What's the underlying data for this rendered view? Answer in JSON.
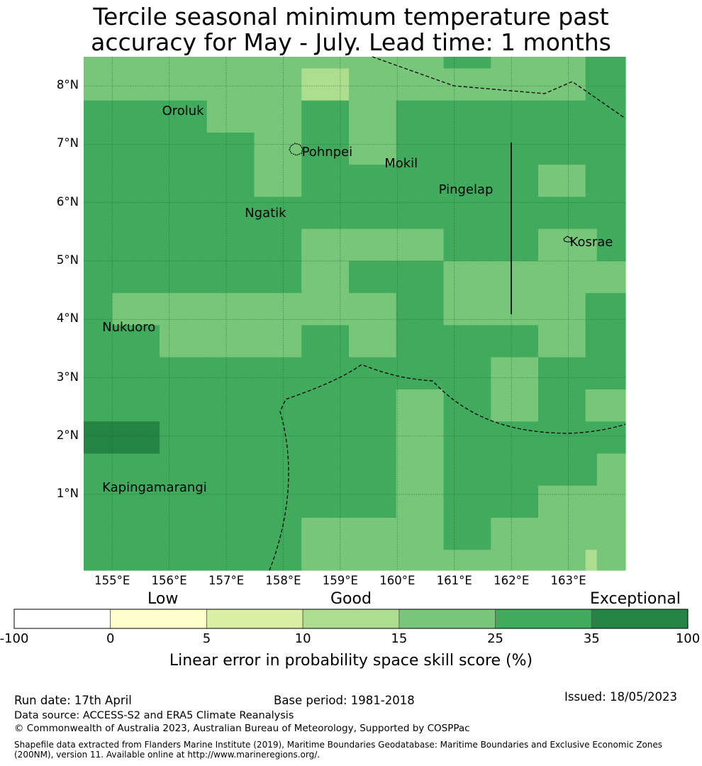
{
  "title": {
    "line1": "Tercile seasonal minimum temperature past",
    "line2": "accuracy for May - July. Lead time: 1 months"
  },
  "map": {
    "lon_range": [
      154.5,
      164.0
    ],
    "lat_range": [
      -0.3,
      8.5
    ],
    "grid": true,
    "lat_ticks": [
      {
        "value": 8,
        "label": "8°N"
      },
      {
        "value": 7,
        "label": "7°N"
      },
      {
        "value": 6,
        "label": "6°N"
      },
      {
        "value": 5,
        "label": "5°N"
      },
      {
        "value": 4,
        "label": "4°N"
      },
      {
        "value": 3,
        "label": "3°N"
      },
      {
        "value": 2,
        "label": "2°N"
      },
      {
        "value": 1,
        "label": "1°N"
      }
    ],
    "lon_ticks": [
      {
        "value": 155,
        "label": "155°E"
      },
      {
        "value": 156,
        "label": "156°E"
      },
      {
        "value": 157,
        "label": "157°E"
      },
      {
        "value": 158,
        "label": "158°E"
      },
      {
        "value": 159,
        "label": "159°E"
      },
      {
        "value": 160,
        "label": "160°E"
      },
      {
        "value": 161,
        "label": "161°E"
      },
      {
        "value": 162,
        "label": "162°E"
      },
      {
        "value": 163,
        "label": "163°E"
      }
    ],
    "places": [
      {
        "name": "Oroluk",
        "lon": 155.85,
        "lat": 7.55
      },
      {
        "name": "Pohnpei",
        "lon": 158.3,
        "lat": 6.85
      },
      {
        "name": "Mokil",
        "lon": 159.75,
        "lat": 6.65
      },
      {
        "name": "Pingelap",
        "lon": 160.7,
        "lat": 6.2
      },
      {
        "name": "Ngatik",
        "lon": 157.3,
        "lat": 5.8
      },
      {
        "name": "Kosrae",
        "lon": 163.0,
        "lat": 5.3
      },
      {
        "name": "Nukuoro",
        "lon": 154.8,
        "lat": 3.85
      },
      {
        "name": "Kapingamarangi",
        "lon": 154.8,
        "lat": 1.1
      }
    ],
    "skill_grid": {
      "note": "class index per cell: 3 = 10-15, 4 = 15-25, 5 = 25-35, 6 = 35-100",
      "row_top_lats": [
        8.5,
        8.3,
        7.75,
        7.2,
        6.65,
        6.1,
        5.55,
        5.0,
        4.45,
        3.9,
        3.35,
        2.8,
        2.25,
        1.7,
        1.15,
        0.6,
        0.05
      ],
      "col_left_lons": [
        154.5,
        155.0,
        155.83,
        156.66,
        157.49,
        158.32,
        159.15,
        159.98,
        160.81,
        161.64,
        162.47,
        163.3,
        163.5
      ],
      "col_right_lon": 164.0,
      "cells": [
        [
          4,
          4,
          4,
          4,
          4,
          4,
          4,
          4,
          5,
          4,
          4,
          5,
          5
        ],
        [
          4,
          4,
          4,
          4,
          4,
          3,
          4,
          4,
          4,
          4,
          4,
          5,
          5
        ],
        [
          5,
          5,
          5,
          4,
          4,
          5,
          4,
          5,
          5,
          5,
          5,
          5,
          5
        ],
        [
          5,
          5,
          5,
          5,
          4,
          5,
          4,
          5,
          5,
          5,
          5,
          5,
          5
        ],
        [
          5,
          5,
          5,
          5,
          4,
          5,
          5,
          5,
          5,
          5,
          4,
          5,
          5
        ],
        [
          5,
          5,
          5,
          5,
          5,
          5,
          5,
          5,
          5,
          5,
          5,
          5,
          5
        ],
        [
          5,
          5,
          5,
          5,
          5,
          4,
          4,
          4,
          5,
          5,
          4,
          4,
          5
        ],
        [
          5,
          5,
          5,
          5,
          5,
          4,
          5,
          5,
          4,
          4,
          4,
          4,
          4
        ],
        [
          5,
          4,
          4,
          4,
          4,
          4,
          4,
          5,
          4,
          4,
          4,
          5,
          5
        ],
        [
          5,
          5,
          4,
          4,
          4,
          5,
          4,
          5,
          5,
          5,
          4,
          5,
          5
        ],
        [
          5,
          5,
          5,
          5,
          5,
          5,
          5,
          5,
          5,
          4,
          5,
          5,
          5
        ],
        [
          5,
          5,
          5,
          5,
          5,
          5,
          5,
          4,
          5,
          4,
          5,
          4,
          4
        ],
        [
          6,
          6,
          5,
          5,
          5,
          5,
          5,
          4,
          5,
          5,
          5,
          5,
          5
        ],
        [
          5,
          5,
          5,
          5,
          5,
          5,
          5,
          4,
          5,
          5,
          5,
          5,
          4
        ],
        [
          5,
          5,
          5,
          5,
          5,
          5,
          5,
          4,
          5,
          5,
          4,
          4,
          4
        ],
        [
          5,
          5,
          5,
          5,
          5,
          4,
          4,
          4,
          5,
          4,
          4,
          4,
          4
        ],
        [
          5,
          5,
          5,
          5,
          5,
          4,
          4,
          4,
          4,
          4,
          4,
          3,
          4
        ]
      ]
    }
  },
  "colorbar": {
    "colors": [
      "#ffffff",
      "#ffffcc",
      "#d9f0a3",
      "#addd8e",
      "#78c679",
      "#41ab5d",
      "#238443"
    ],
    "ticks": [
      "-100",
      "0",
      "5",
      "10",
      "15",
      "25",
      "35",
      "100"
    ],
    "categories": {
      "low": "Low",
      "good": "Good",
      "exceptional": "Exceptional"
    },
    "label": "Linear error in probability space skill score (%)"
  },
  "footer": {
    "run_date": "Run date: 17th April",
    "base_period": "Base period: 1981-2018",
    "issued": "Issued: 18/05/2023",
    "data_source": "Data source: ACCESS-S2 and ERA5 Climate Reanalysis",
    "copyright": "© Commonwealth of Australia 2023, Australian Bureau of Meteorology, Supported by COSPPac",
    "shapefile_line1": "Shapefile data extracted from Flanders Marine Institute (2019), Maritime Boundaries Geodatabase: Maritime Boundaries and Exclusive Economic Zones",
    "shapefile_line2": "(200NM), version 11. Available online at http://www.marineregions.org/."
  }
}
